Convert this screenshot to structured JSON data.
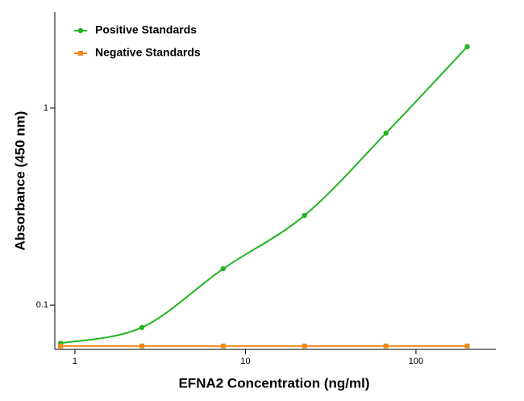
{
  "chart_data": {
    "type": "line",
    "x_label": "EFNA2 Concentration (ng/ml)",
    "y_label": "Absorbance (450 nm)",
    "x": [
      0.823,
      2.47,
      7.41,
      22.2,
      66.7,
      200
    ],
    "series": [
      {
        "name": "Positive Standards",
        "color": "#22b522",
        "marker": "circle",
        "values": [
          0.064,
          0.077,
          0.153,
          0.285,
          0.746,
          2.05
        ]
      },
      {
        "name": "Negative Standards",
        "color": "#f28a1c",
        "marker": "square",
        "values": [
          0.062,
          0.062,
          0.062,
          0.062,
          0.062,
          0.062
        ]
      }
    ],
    "xscale": "log",
    "yscale": "log",
    "xlim": [
      0.762,
      294
    ],
    "ylim": [
      0.0596,
      3.07
    ],
    "xticks": [
      1,
      10,
      100
    ],
    "yticks": [
      0.1,
      1
    ],
    "legend": "upper left"
  }
}
